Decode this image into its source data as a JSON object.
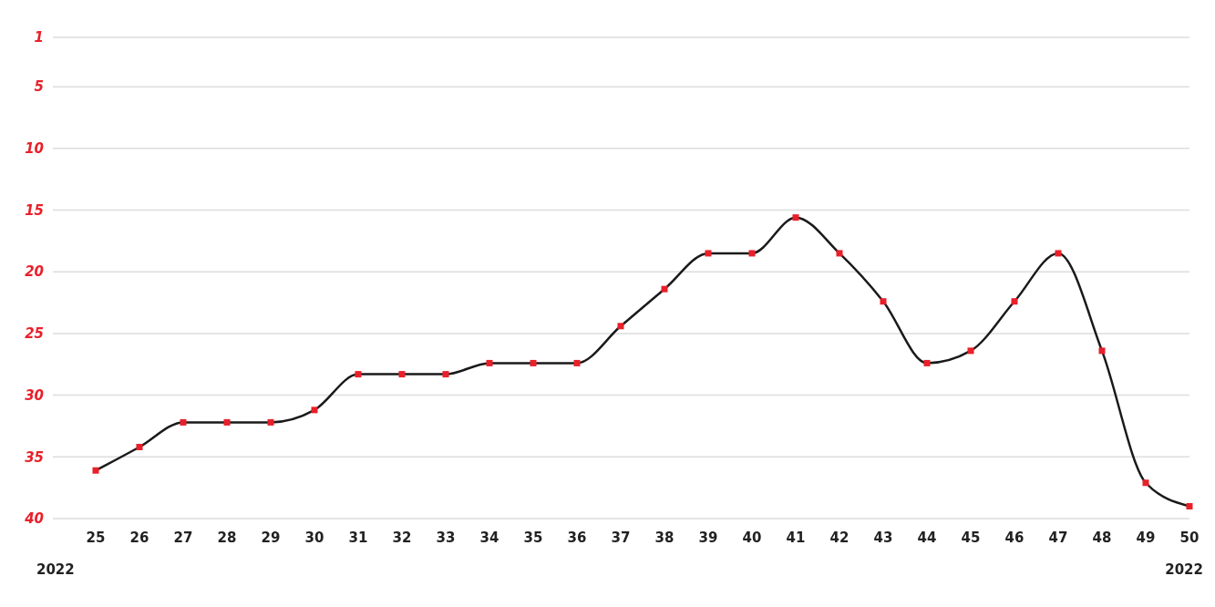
{
  "chart_data": {
    "type": "line",
    "categories": [
      "25",
      "26",
      "27",
      "28",
      "29",
      "30",
      "31",
      "32",
      "33",
      "34",
      "35",
      "36",
      "37",
      "38",
      "39",
      "40",
      "41",
      "42",
      "43",
      "44",
      "45",
      "46",
      "47",
      "48",
      "49",
      "50"
    ],
    "series": [
      {
        "color": "#1a1a1a",
        "values": [
          36.1,
          34.2,
          32.2,
          32.2,
          32.2,
          31.2,
          28.3,
          28.3,
          28.3,
          27.4,
          27.4,
          27.4,
          24.4,
          21.4,
          18.5,
          18.5,
          15.6,
          18.5,
          22.4,
          27.4,
          26.4,
          22.4,
          18.5,
          26.4,
          37.1,
          39.0
        ]
      }
    ],
    "ylim": [
      40,
      1
    ],
    "yticks": [
      1,
      5,
      10,
      15,
      20,
      25,
      30,
      35,
      40
    ],
    "grid": "y",
    "marker": "square",
    "line_style": "solid",
    "annotations": [
      "2022",
      "2022"
    ]
  }
}
